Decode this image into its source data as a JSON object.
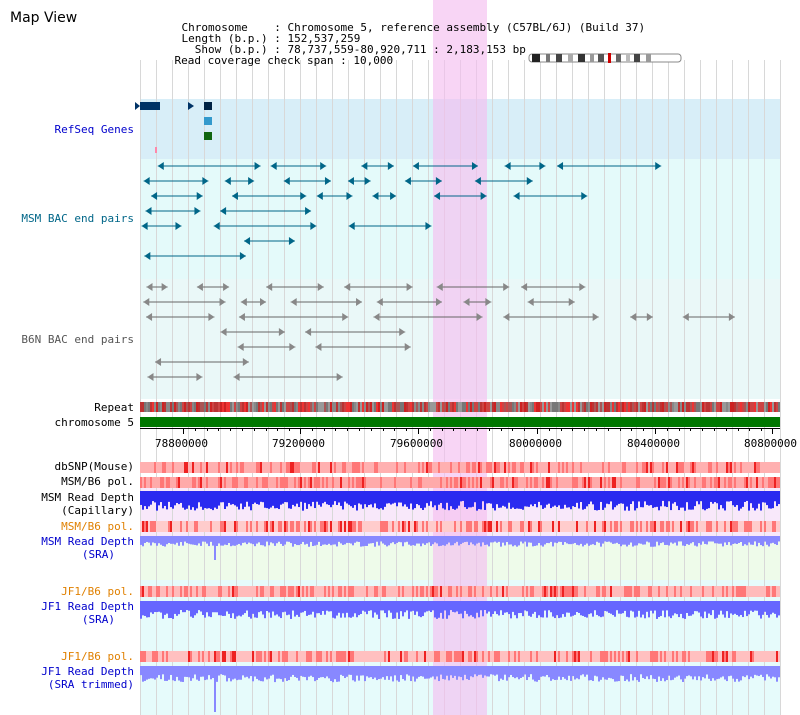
{
  "header": {
    "title": "Map View",
    "chromosome_key": "Chromosome",
    "chromosome_value": "Chromosome 5, reference assembly (C57BL/6J) (Build 37)",
    "length_key": "Length (b.p.)",
    "length_value": "152,537,259",
    "show_key": "Show (b.p.)",
    "show_value": "78,737,559-80,920,711 : 2,183,153 bp",
    "coverage_key": "Read coverage check span",
    "coverage_value": "10,000"
  },
  "tracks": {
    "refseq": "RefSeq Genes",
    "msm_bac": "MSM BAC end pairs",
    "b6n_bac": "B6N BAC end pairs",
    "repeat": "Repeat",
    "chromosome": "chromosome 5",
    "dbsnp": "dbSNP(Mouse)",
    "msm_b6_pol_1": "MSM/B6 pol.",
    "msm_depth_cap_1": "MSM Read Depth",
    "msm_depth_cap_2": "(Capillary)",
    "msm_b6_pol_2": "MSM/B6 pol.",
    "msm_depth_sra_1": "MSM Read Depth",
    "msm_depth_sra_2": "(SRA)",
    "jf1_b6_pol_1": "JF1/B6 pol.",
    "jf1_depth_sra_1": "JF1 Read Depth",
    "jf1_depth_sra_2": "(SRA)",
    "jf1_b6_pol_2": "JF1/B6 pol.",
    "jf1_depth_trim_1": "JF1 Read Depth",
    "jf1_depth_trim_2": "(SRA trimmed)"
  },
  "axis": {
    "ticks": [
      "78800000",
      "79200000",
      "79600000",
      "80000000",
      "80400000",
      "80800000"
    ]
  },
  "colors": {
    "label_blue": "#0000cc",
    "label_teal": "#006688",
    "label_gray": "#555555",
    "label_orange": "#e08000",
    "refseq_bg": "#d8eef8",
    "msm_bg": "#e0fafa",
    "b6n_bg": "#e6f8f8",
    "highlight": "#f8d8f0",
    "chromosome_green": "#007700",
    "depth_blue": "#2222ee",
    "snp_red": "#ff4444"
  }
}
